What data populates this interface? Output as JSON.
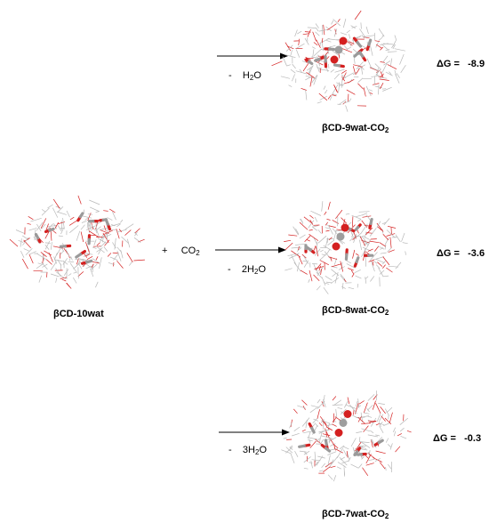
{
  "reactant": {
    "label": "βCD-10wat",
    "plus": "+",
    "reagent_main": "CO",
    "reagent_sub": "2"
  },
  "reactions": [
    {
      "removed_prefix": "-",
      "removed_coef": "",
      "removed_main": "H",
      "removed_sub": "2",
      "removed_tail": "O",
      "product_main": "βCD-9wat-CO",
      "product_sub": "2",
      "dg_label": "ΔG =",
      "dg_value": "-8.9"
    },
    {
      "removed_prefix": "-",
      "removed_coef": "2",
      "removed_main": "H",
      "removed_sub": "2",
      "removed_tail": "O",
      "product_main": "βCD-8wat-CO",
      "product_sub": "2",
      "dg_label": "ΔG =",
      "dg_value": "-3.6"
    },
    {
      "removed_prefix": "-",
      "removed_coef": "3",
      "removed_main": "H",
      "removed_sub": "2",
      "removed_tail": "O",
      "product_main": "βCD-7wat-CO",
      "product_sub": "2",
      "dg_label": "ΔG =",
      "dg_value": "-0.3"
    }
  ],
  "colors": {
    "framework": "#b8b8b8",
    "oxygen": "#d42020",
    "water_h": "#9a9a9a",
    "carbon_ball": "#9e9e9e",
    "arrow": "#000000"
  }
}
